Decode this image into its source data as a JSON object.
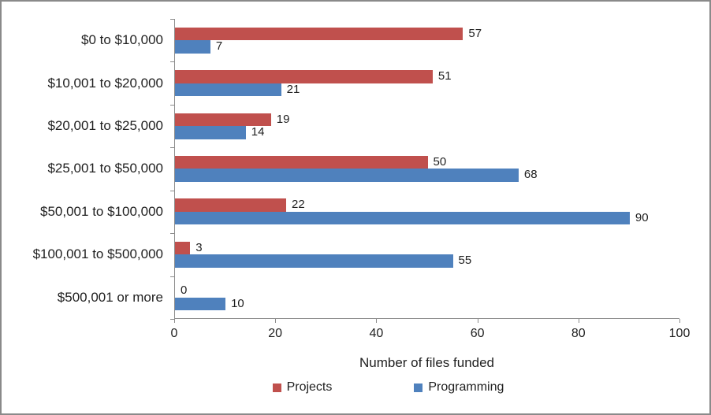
{
  "chart_data": {
    "type": "bar",
    "orientation": "horizontal",
    "title": "",
    "xlabel": "Number of files funded",
    "xlim": [
      0,
      100
    ],
    "xticks": [
      0,
      20,
      40,
      60,
      80,
      100
    ],
    "grid": false,
    "legend_position": "bottom",
    "categories": [
      "$0 to $10,000",
      "$10,001 to $20,000",
      "$20,001 to $25,000",
      "$25,001 to $50,000",
      "$50,001 to $100,000",
      "$100,001 to $500,000",
      "$500,001 or more"
    ],
    "series": [
      {
        "name": "Projects",
        "color": "#C0504D",
        "values": [
          57,
          51,
          19,
          50,
          22,
          3,
          0
        ]
      },
      {
        "name": "Programming",
        "color": "#4F81BD",
        "values": [
          7,
          21,
          14,
          68,
          90,
          55,
          10
        ]
      }
    ],
    "data_labels": true,
    "axis_color": "#8C8C8C",
    "text_color": "#1F1F1F",
    "border_color": "#8A8A8A"
  }
}
